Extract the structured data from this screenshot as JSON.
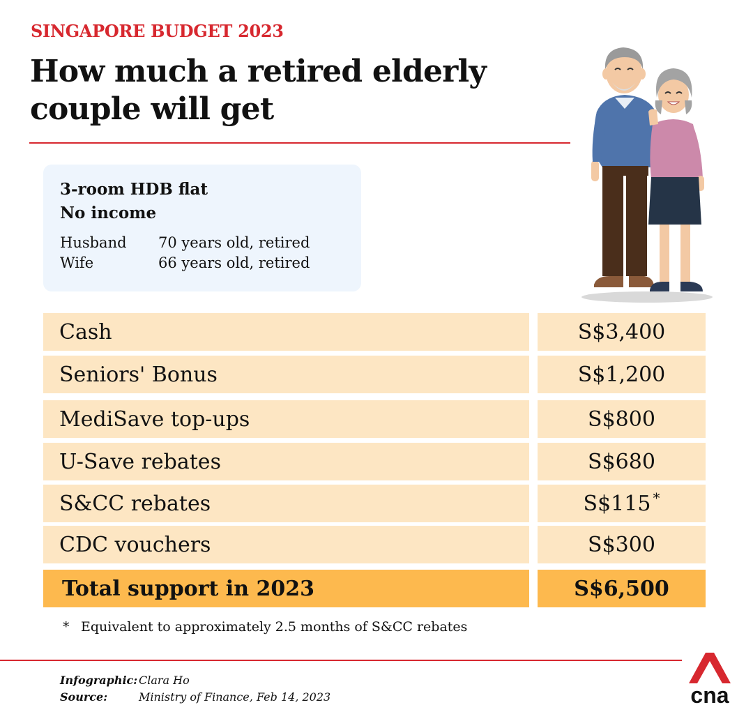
{
  "header": {
    "kicker": "SINGAPORE BUDGET 2023",
    "title": "How much a retired elderly couple will get"
  },
  "profile": {
    "housing": "3-room HDB flat",
    "income": "No income",
    "members": [
      {
        "role": "Husband",
        "detail": "70 years old, retired"
      },
      {
        "role": "Wife",
        "detail": "66 years old, retired"
      }
    ]
  },
  "support": {
    "rows": [
      {
        "label": "Cash",
        "value": "S$3,400"
      },
      {
        "label": "Seniors' Bonus",
        "value": "S$1,200"
      },
      {
        "label": "MediSave top-ups",
        "value": "S$800"
      },
      {
        "label": "U-Save rebates",
        "value": "S$680"
      },
      {
        "label": "S&CC rebates",
        "value": "S$115",
        "mark": "*"
      },
      {
        "label": "CDC vouchers",
        "value": "S$300"
      }
    ],
    "total": {
      "label": "Total support in 2023",
      "value": "S$6,500"
    }
  },
  "footnote": {
    "mark": "*",
    "text": "Equivalent to approximately 2.5 months of S&CC rebates"
  },
  "credits": {
    "infographic_key": "Infographic:",
    "infographic_value": "Clara Ho",
    "source_key": "Source:",
    "source_value": "Ministry of Finance, Feb 14, 2023"
  },
  "logo": {
    "text": "cna"
  },
  "colors": {
    "accent": "#d7282f",
    "row_fill": "#fde6c3",
    "total_fill": "#fdb94e",
    "profile_fill": "#eef5fd"
  }
}
